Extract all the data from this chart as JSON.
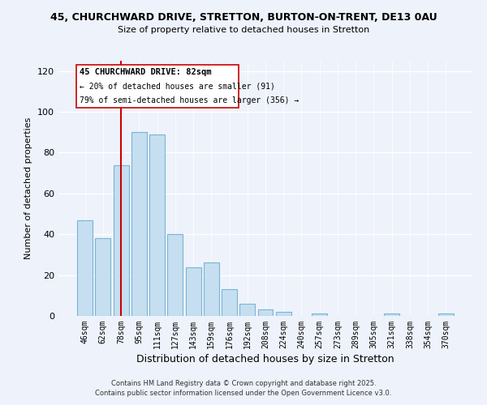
{
  "title1": "45, CHURCHWARD DRIVE, STRETTON, BURTON-ON-TRENT, DE13 0AU",
  "title2": "Size of property relative to detached houses in Stretton",
  "xlabel": "Distribution of detached houses by size in Stretton",
  "ylabel": "Number of detached properties",
  "bar_color": "#c5dff0",
  "bar_edge_color": "#7ab4d4",
  "categories": [
    "46sqm",
    "62sqm",
    "78sqm",
    "95sqm",
    "111sqm",
    "127sqm",
    "143sqm",
    "159sqm",
    "176sqm",
    "192sqm",
    "208sqm",
    "224sqm",
    "240sqm",
    "257sqm",
    "273sqm",
    "289sqm",
    "305sqm",
    "321sqm",
    "338sqm",
    "354sqm",
    "370sqm"
  ],
  "values": [
    47,
    38,
    74,
    90,
    89,
    40,
    24,
    26,
    13,
    6,
    3,
    2,
    0,
    1,
    0,
    0,
    0,
    1,
    0,
    0,
    1
  ],
  "ylim": [
    0,
    125
  ],
  "yticks": [
    0,
    20,
    40,
    60,
    80,
    100,
    120
  ],
  "vline_x": 2,
  "vline_color": "#cc0000",
  "annotation_title": "45 CHURCHWARD DRIVE: 82sqm",
  "annotation_line1": "← 20% of detached houses are smaller (91)",
  "annotation_line2": "79% of semi-detached houses are larger (356) →",
  "footer1": "Contains HM Land Registry data © Crown copyright and database right 2025.",
  "footer2": "Contains public sector information licensed under the Open Government Licence v3.0.",
  "bg_color": "#eef2fb"
}
